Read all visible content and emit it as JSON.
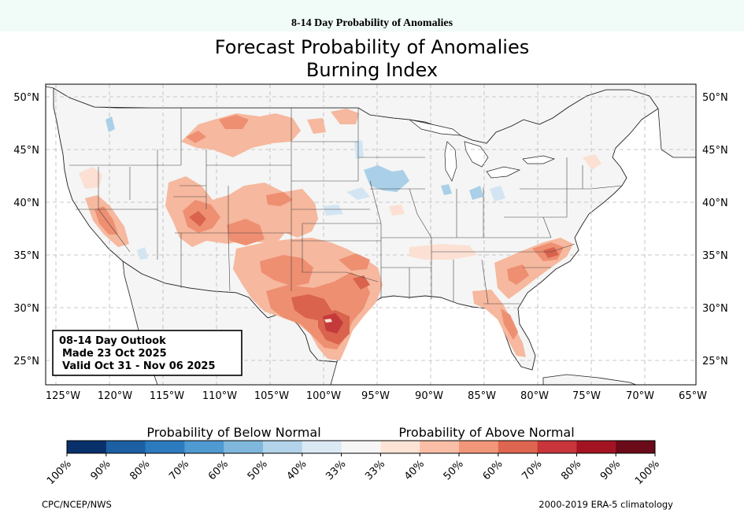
{
  "page_header": "8-14 Day Probability of Anomalies",
  "title_line1": "Forecast Probability of Anomalies",
  "title_line2": "Burning Index",
  "outlook": {
    "line1": "08-14 Day Outlook",
    "line2": "Made 23 Oct 2025",
    "line3": "Valid Oct 31 - Nov 06 2025"
  },
  "map": {
    "lon_range": [
      -125,
      -65
    ],
    "lat_range": [
      23,
      51.5
    ],
    "lon_ticks": [
      "125°W",
      "120°W",
      "115°W",
      "110°W",
      "105°W",
      "100°W",
      "95°W",
      "90°W",
      "85°W",
      "80°W",
      "75°W",
      "70°W",
      "65°W"
    ],
    "lat_ticks": [
      "50°N",
      "45°N",
      "40°N",
      "35°N",
      "30°N",
      "25°N"
    ],
    "gridlines": true
  },
  "legend": {
    "below_label": "Probability of Below Normal",
    "above_label": "Probability of Above Normal",
    "tick_labels": [
      "100%",
      "90%",
      "80%",
      "70%",
      "60%",
      "50%",
      "40%",
      "33%",
      "33%",
      "40%",
      "50%",
      "60%",
      "70%",
      "80%",
      "90%",
      "100%"
    ],
    "colors": [
      "#08306b",
      "#1c5fa3",
      "#2d7bbf",
      "#4f9ad0",
      "#7fb8dc",
      "#b2d3e9",
      "#dbe9f5",
      "#f6f6f6",
      "#fde3d6",
      "#f9bea5",
      "#f19679",
      "#de6650",
      "#c8353a",
      "#a21422",
      "#6b0a19"
    ]
  },
  "footer_left": "CPC/NCEP/NWS",
  "footer_right": "2000-2019 ERA-5 climatology",
  "anomaly_colors": {
    "above_33": "#fbe0d3",
    "above_40": "#f6b89e",
    "above_50": "#ee8f72",
    "above_60": "#d9634d",
    "above_70": "#c43a3a",
    "below_33": "#d3e5f3",
    "below_40": "#aacfe8",
    "land": "#f4f5f4",
    "ocean": "#ffffff"
  }
}
